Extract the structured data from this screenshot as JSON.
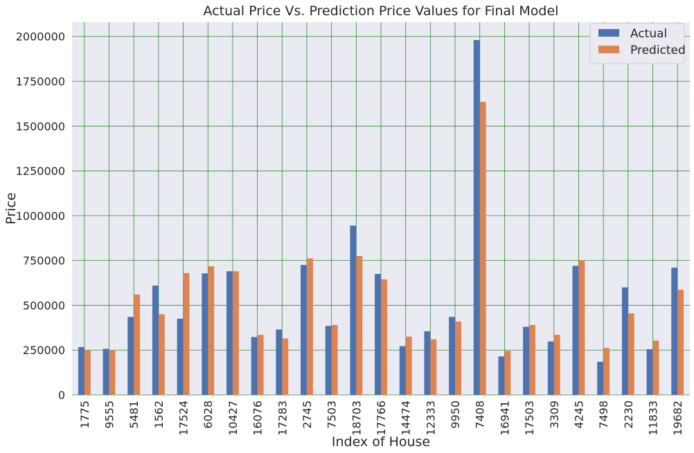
{
  "chart_data": {
    "type": "bar",
    "title": "Actual Price Vs. Prediction Price Values for Final Model",
    "xlabel": "Index of House",
    "ylabel": "Price",
    "ylim": [
      0,
      2080000
    ],
    "yticks": [
      0,
      250000,
      500000,
      750000,
      1000000,
      1250000,
      1500000,
      1750000,
      2000000
    ],
    "ytick_labels": [
      "0",
      "250000",
      "500000",
      "750000",
      "1000000",
      "1250000",
      "1500000",
      "1750000",
      "2000000"
    ],
    "categories": [
      "1775",
      "9555",
      "5481",
      "1562",
      "17524",
      "6028",
      "10427",
      "16076",
      "17283",
      "2745",
      "7503",
      "18703",
      "17766",
      "14474",
      "12333",
      "9950",
      "7408",
      "16941",
      "17503",
      "3309",
      "4245",
      "7498",
      "2230",
      "11833",
      "19682"
    ],
    "series": [
      {
        "name": "Actual",
        "color": "#4c72b0",
        "values": [
          267000,
          257000,
          435000,
          610000,
          425000,
          678000,
          690000,
          323000,
          365000,
          725000,
          385000,
          945000,
          675000,
          272000,
          355000,
          435000,
          1980000,
          215000,
          380000,
          298000,
          720000,
          185000,
          600000,
          255000,
          710000
        ]
      },
      {
        "name": "Predicted",
        "color": "#dd8452",
        "values": [
          250000,
          247000,
          560000,
          450000,
          680000,
          718000,
          690000,
          335000,
          315000,
          762000,
          390000,
          775000,
          645000,
          325000,
          310000,
          410000,
          1635000,
          245000,
          390000,
          335000,
          752000,
          262000,
          455000,
          303000,
          587000
        ]
      }
    ],
    "grid": true,
    "grid_color": "#2e8b2e",
    "background_color": "#eaeaf2",
    "legend_position": "upper right"
  }
}
